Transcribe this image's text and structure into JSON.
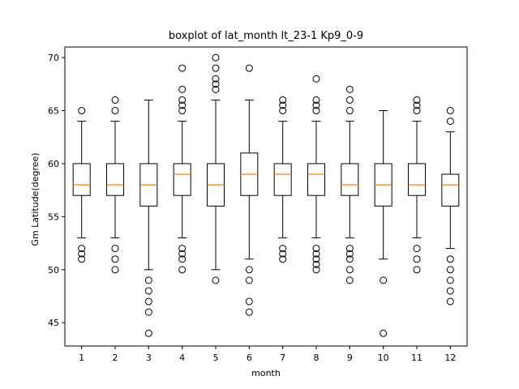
{
  "chart_data": {
    "type": "box",
    "title": "boxplot of lat_month lt_23-1 Kp9_0-9",
    "xlabel": "month",
    "ylabel": "Gm Latitude(degree)",
    "categories": [
      "1",
      "2",
      "3",
      "4",
      "5",
      "6",
      "7",
      "8",
      "9",
      "10",
      "11",
      "12"
    ],
    "ylim": [
      42.8,
      71.0
    ],
    "yticks": [
      45,
      50,
      55,
      60,
      65,
      70
    ],
    "grid": false,
    "colors": {
      "box": "#000000",
      "median": "#ff7f0e",
      "background": "#ffffff"
    },
    "boxes": [
      {
        "label": "1",
        "whislo": 53,
        "q1": 57,
        "med": 58,
        "q3": 60,
        "whishi": 64,
        "fliers": [
          51,
          51.5,
          52,
          65
        ]
      },
      {
        "label": "2",
        "whislo": 53,
        "q1": 57,
        "med": 58,
        "q3": 60,
        "whishi": 64,
        "fliers": [
          50,
          51,
          52,
          65,
          66
        ]
      },
      {
        "label": "3",
        "whislo": 50,
        "q1": 56,
        "med": 58,
        "q3": 60,
        "whishi": 66,
        "fliers": [
          44,
          46,
          47,
          48,
          49
        ]
      },
      {
        "label": "4",
        "whislo": 53,
        "q1": 57,
        "med": 59,
        "q3": 60,
        "whishi": 64,
        "fliers": [
          50,
          51,
          51.5,
          52,
          65,
          65.5,
          66,
          67,
          69
        ]
      },
      {
        "label": "5",
        "whislo": 50,
        "q1": 56,
        "med": 58,
        "q3": 60,
        "whishi": 66,
        "fliers": [
          49,
          67,
          67.5,
          68,
          69,
          70
        ]
      },
      {
        "label": "6",
        "whislo": 51,
        "q1": 57,
        "med": 59,
        "q3": 61,
        "whishi": 66,
        "fliers": [
          46,
          47,
          49,
          50,
          69
        ]
      },
      {
        "label": "7",
        "whislo": 53,
        "q1": 57,
        "med": 59,
        "q3": 60,
        "whishi": 64,
        "fliers": [
          51,
          51.5,
          52,
          65,
          65.5,
          66
        ]
      },
      {
        "label": "8",
        "whislo": 53,
        "q1": 57,
        "med": 59,
        "q3": 60,
        "whishi": 64,
        "fliers": [
          50,
          50.5,
          51,
          51.5,
          52,
          65,
          65.5,
          66,
          68
        ]
      },
      {
        "label": "9",
        "whislo": 53,
        "q1": 57,
        "med": 58,
        "q3": 60,
        "whishi": 64,
        "fliers": [
          49,
          50,
          51,
          51.5,
          52,
          65,
          66,
          67
        ]
      },
      {
        "label": "10",
        "whislo": 51,
        "q1": 56,
        "med": 58,
        "q3": 60,
        "whishi": 65,
        "fliers": [
          44,
          49
        ]
      },
      {
        "label": "11",
        "whislo": 53,
        "q1": 57,
        "med": 58,
        "q3": 60,
        "whishi": 64,
        "fliers": [
          50,
          51,
          52,
          65,
          65.5,
          66
        ]
      },
      {
        "label": "12",
        "whislo": 52,
        "q1": 56,
        "med": 58,
        "q3": 59,
        "whishi": 63,
        "fliers": [
          47,
          48,
          49,
          50,
          51,
          64,
          65
        ]
      }
    ]
  }
}
